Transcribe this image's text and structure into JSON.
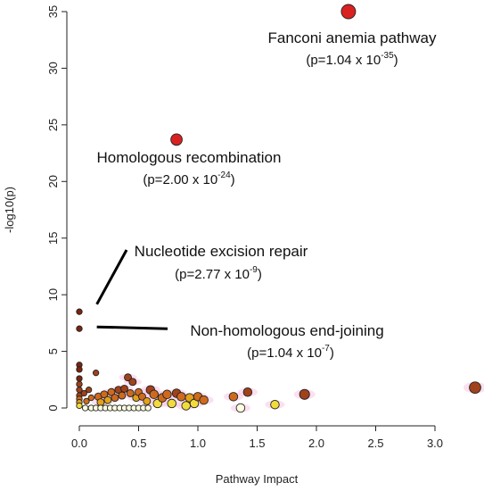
{
  "chart_data": {
    "type": "scatter",
    "title": "",
    "xlabel": "Pathway Impact",
    "ylabel": "-log10(p)",
    "xlim": [
      0,
      3.35
    ],
    "ylim": [
      0,
      35.5
    ],
    "xticks": [
      "0.0",
      "0.5",
      "1.0",
      "1.5",
      "2.0",
      "2.5",
      "3.0"
    ],
    "xtick_values": [
      0,
      0.5,
      1.0,
      1.5,
      2.0,
      2.5,
      3.0
    ],
    "yticks": [
      "0",
      "5",
      "10",
      "15",
      "20",
      "25",
      "30",
      "35"
    ],
    "ytick_values": [
      0,
      5,
      10,
      15,
      20,
      25,
      30,
      35
    ],
    "color_scale": [
      "#ffffe0",
      "#f2dc3c",
      "#e3a21a",
      "#cf6a1c",
      "#a0421b",
      "#7a2410",
      "#d92121"
    ],
    "points": [
      {
        "x": 2.27,
        "y": 35.0,
        "size": 10,
        "color": "#d92121"
      },
      {
        "x": 0.82,
        "y": 23.7,
        "size": 8,
        "color": "#d92121"
      },
      {
        "x": 0.0,
        "y": 8.5,
        "size": 4,
        "color": "#7a2410"
      },
      {
        "x": 0.0,
        "y": 7.0,
        "size": 4,
        "color": "#7a2410"
      },
      {
        "x": 0.0,
        "y": 3.8,
        "size": 4,
        "color": "#7a2410"
      },
      {
        "x": 0.0,
        "y": 3.4,
        "size": 4,
        "color": "#7a2410"
      },
      {
        "x": 0.0,
        "y": 2.6,
        "size": 4,
        "color": "#7a2410"
      },
      {
        "x": 0.0,
        "y": 2.1,
        "size": 4,
        "color": "#a0421b"
      },
      {
        "x": 0.0,
        "y": 1.6,
        "size": 4,
        "color": "#a0421b"
      },
      {
        "x": 0.0,
        "y": 1.1,
        "size": 4,
        "color": "#a0421b"
      },
      {
        "x": 0.0,
        "y": 0.8,
        "size": 4,
        "color": "#cf6a1c"
      },
      {
        "x": 0.0,
        "y": 0.5,
        "size": 4,
        "color": "#e3a21a"
      },
      {
        "x": 0.0,
        "y": 0.2,
        "size": 4,
        "color": "#f2dc3c"
      },
      {
        "x": 0.04,
        "y": 1.3,
        "size": 4,
        "color": "#a0421b"
      },
      {
        "x": 0.06,
        "y": 0.6,
        "size": 4,
        "color": "#cf6a1c"
      },
      {
        "x": 0.08,
        "y": 1.6,
        "size": 4,
        "color": "#a0421b"
      },
      {
        "x": 0.1,
        "y": 0.9,
        "size": 4,
        "color": "#cf6a1c"
      },
      {
        "x": 0.14,
        "y": 3.1,
        "size": 4,
        "color": "#a0421b"
      },
      {
        "x": 0.16,
        "y": 1.0,
        "size": 5,
        "color": "#cf6a1c"
      },
      {
        "x": 0.18,
        "y": 0.5,
        "size": 5,
        "color": "#e3a21a"
      },
      {
        "x": 0.21,
        "y": 1.2,
        "size": 5,
        "color": "#cf6a1c"
      },
      {
        "x": 0.24,
        "y": 0.7,
        "size": 5,
        "color": "#e3a21a"
      },
      {
        "x": 0.27,
        "y": 1.4,
        "size": 5,
        "color": "#cf6a1c"
      },
      {
        "x": 0.3,
        "y": 0.9,
        "size": 5,
        "color": "#cf6a1c"
      },
      {
        "x": 0.33,
        "y": 1.6,
        "size": 5,
        "color": "#a0421b"
      },
      {
        "x": 0.36,
        "y": 1.1,
        "size": 5,
        "color": "#cf6a1c"
      },
      {
        "x": 0.38,
        "y": 1.7,
        "size": 5,
        "color": "#a0421b"
      },
      {
        "x": 0.41,
        "y": 2.7,
        "size": 5,
        "color": "#a0421b"
      },
      {
        "x": 0.43,
        "y": 1.3,
        "size": 5,
        "color": "#cf6a1c"
      },
      {
        "x": 0.45,
        "y": 2.3,
        "size": 5,
        "color": "#a0421b"
      },
      {
        "x": 0.48,
        "y": 0.9,
        "size": 5,
        "color": "#e3a21a"
      },
      {
        "x": 0.5,
        "y": 1.4,
        "size": 5,
        "color": "#cf6a1c"
      },
      {
        "x": 0.53,
        "y": 1.0,
        "size": 5,
        "color": "#cf6a1c"
      },
      {
        "x": 0.57,
        "y": 0.6,
        "size": 5,
        "color": "#e3a21a"
      },
      {
        "x": 0.6,
        "y": 1.6,
        "size": 6,
        "color": "#a0421b"
      },
      {
        "x": 0.63,
        "y": 1.2,
        "size": 6,
        "color": "#cf6a1c"
      },
      {
        "x": 0.66,
        "y": 0.4,
        "size": 6,
        "color": "#f2dc3c"
      },
      {
        "x": 0.7,
        "y": 0.9,
        "size": 6,
        "color": "#cf6a1c"
      },
      {
        "x": 0.74,
        "y": 1.2,
        "size": 6,
        "color": "#cf6a1c"
      },
      {
        "x": 0.78,
        "y": 0.4,
        "size": 6,
        "color": "#f2dc3c"
      },
      {
        "x": 0.82,
        "y": 1.3,
        "size": 6,
        "color": "#a0421b"
      },
      {
        "x": 0.86,
        "y": 1.0,
        "size": 6,
        "color": "#cf6a1c"
      },
      {
        "x": 0.9,
        "y": 0.2,
        "size": 6,
        "color": "#f2dc3c"
      },
      {
        "x": 0.93,
        "y": 0.9,
        "size": 6,
        "color": "#e3a21a"
      },
      {
        "x": 0.97,
        "y": 0.4,
        "size": 6,
        "color": "#f2dc3c"
      },
      {
        "x": 1.0,
        "y": 1.0,
        "size": 6,
        "color": "#cf6a1c"
      },
      {
        "x": 1.05,
        "y": 0.7,
        "size": 6,
        "color": "#cf6a1c"
      },
      {
        "x": 1.3,
        "y": 1.0,
        "size": 6,
        "color": "#cf6a1c"
      },
      {
        "x": 1.36,
        "y": 0.0,
        "size": 6,
        "color": "#ffffe0"
      },
      {
        "x": 1.42,
        "y": 1.4,
        "size": 6,
        "color": "#a0421b"
      },
      {
        "x": 1.65,
        "y": 0.3,
        "size": 6,
        "color": "#f2dc3c"
      },
      {
        "x": 1.9,
        "y": 1.2,
        "size": 7,
        "color": "#a0421b"
      },
      {
        "x": 3.35,
        "y": 1.8,
        "size": 8,
        "color": "#a0421b"
      },
      {
        "x": 0.05,
        "y": 0.0,
        "size": 4,
        "color": "#ffffe0"
      },
      {
        "x": 0.1,
        "y": 0.0,
        "size": 4,
        "color": "#ffffe0"
      },
      {
        "x": 0.14,
        "y": 0.0,
        "size": 4,
        "color": "#ffffe0"
      },
      {
        "x": 0.18,
        "y": 0.0,
        "size": 4,
        "color": "#ffffe0"
      },
      {
        "x": 0.22,
        "y": 0.0,
        "size": 4,
        "color": "#ffffe0"
      },
      {
        "x": 0.26,
        "y": 0.0,
        "size": 4,
        "color": "#ffffe0"
      },
      {
        "x": 0.3,
        "y": 0.0,
        "size": 4,
        "color": "#ffffe0"
      },
      {
        "x": 0.34,
        "y": 0.0,
        "size": 4,
        "color": "#ffffe0"
      },
      {
        "x": 0.38,
        "y": 0.0,
        "size": 4,
        "color": "#ffffe0"
      },
      {
        "x": 0.42,
        "y": 0.0,
        "size": 4,
        "color": "#ffffe0"
      },
      {
        "x": 0.46,
        "y": 0.0,
        "size": 4,
        "color": "#ffffe0"
      },
      {
        "x": 0.5,
        "y": 0.0,
        "size": 4,
        "color": "#ffffe0"
      },
      {
        "x": 0.54,
        "y": 0.0,
        "size": 4,
        "color": "#ffffe0"
      },
      {
        "x": 0.58,
        "y": 0.0,
        "size": 4,
        "color": "#ffffe0"
      }
    ],
    "annotations": [
      {
        "name": "Fanconi anemia pathway",
        "p_mantissa": "1.04",
        "p_exponent": "-35"
      },
      {
        "name": "Homologous recombination",
        "p_mantissa": "2.00",
        "p_exponent": "-24"
      },
      {
        "name": "Nucleotide excision repair",
        "p_mantissa": "2.77",
        "p_exponent": "-9"
      },
      {
        "name": "Non-homologous end-joining",
        "p_mantissa": "1.04",
        "p_exponent": "-7"
      }
    ],
    "pointer_lines": [
      {
        "x1": 0.08,
        "y1": 9.0,
        "x2": 0.55,
        "y2": 14.0
      },
      {
        "x1": 0.08,
        "y1": 7.0,
        "x2": 0.8,
        "y2": 7.0
      }
    ]
  }
}
